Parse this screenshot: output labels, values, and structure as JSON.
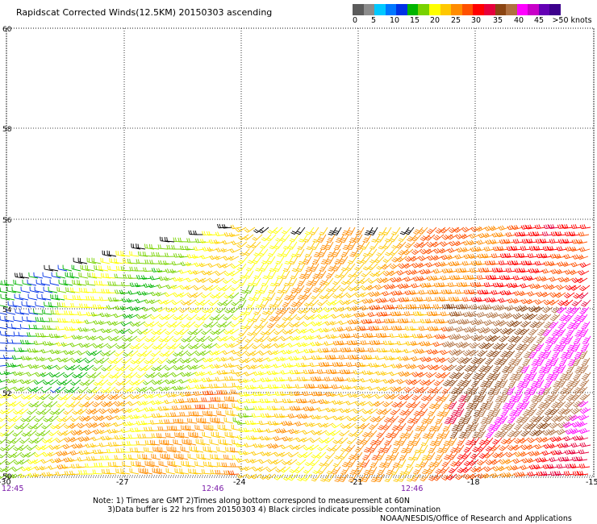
{
  "title": "Rapidscat Corrected Winds(12.5KM) 20150303 ascending",
  "colorbar": {
    "colors": [
      "#5b5b5b",
      "#8c8c8c",
      "#00c8ff",
      "#0078ff",
      "#0032e6",
      "#00b400",
      "#78d200",
      "#ffff00",
      "#ffc800",
      "#ff8c00",
      "#ff5000",
      "#ff0000",
      "#e6003c",
      "#8b4513",
      "#b07040",
      "#ff00ff",
      "#c800c8",
      "#6400b4",
      "#3c008c"
    ],
    "labels": [
      "0",
      "5",
      "10",
      "15",
      "20",
      "25",
      "30",
      "35",
      "40",
      "45",
      ">50 knots"
    ]
  },
  "axes": {
    "lat_labels": [
      "60",
      "58",
      "56",
      "54",
      "52",
      "50"
    ],
    "lon_labels": [
      "-30",
      "-27",
      "-24",
      "-21",
      "-18",
      "-15"
    ]
  },
  "time_labels": [
    "12:45",
    "12:46",
    "12:46"
  ],
  "notes": {
    "line1": "Note: 1) Times are GMT 2)Times along bottom correspond to measurement at 60N",
    "line2": "3)Data buffer is 22 hrs from 20150303 4) Black circles indicate possible contamination"
  },
  "credit": "NOAA/NESDIS/Office of Research and Applications"
}
